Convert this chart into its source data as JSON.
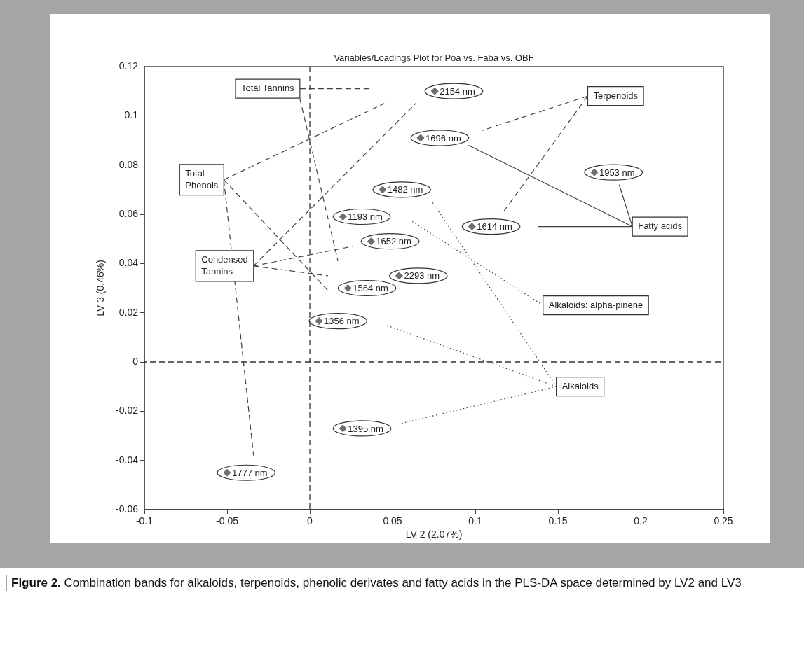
{
  "chart_data": {
    "type": "scatter",
    "title": "Variables/Loadings Plot for Poa vs. Faba vs. OBF",
    "xlabel": "LV 2 (2.07%)",
    "ylabel": "LV 3 (0.46%)",
    "xlim": [
      -0.1,
      0.25
    ],
    "ylim": [
      -0.06,
      0.12
    ],
    "xticks": [
      -0.1,
      -0.05,
      0,
      0.05,
      0.1,
      0.15,
      0.2,
      0.25
    ],
    "yticks": [
      -0.06,
      -0.04,
      -0.02,
      0,
      0.02,
      0.04,
      0.06,
      0.08,
      0.1,
      0.12
    ],
    "grid": false,
    "legend": false,
    "marker": "diamond",
    "series": [
      {
        "name": "2154 nm",
        "color": "#6e6e6e",
        "x": [
          0.0755
        ],
        "values": [
          0.11
        ]
      },
      {
        "name": "1696 nm",
        "color": "#6e6e6e",
        "x": [
          0.067
        ],
        "values": [
          0.091
        ]
      },
      {
        "name": "1482 nm",
        "color": "#6e6e6e",
        "x": [
          0.044
        ],
        "values": [
          0.07
        ]
      },
      {
        "name": "1193 nm",
        "color": "#6e6e6e",
        "x": [
          0.02
        ],
        "values": [
          0.059
        ]
      },
      {
        "name": "1614 nm",
        "color": "#6e6e6e",
        "x": [
          0.098
        ],
        "values": [
          0.055
        ]
      },
      {
        "name": "1652 nm",
        "color": "#6e6e6e",
        "x": [
          0.037
        ],
        "values": [
          0.049
        ]
      },
      {
        "name": "2293 nm",
        "color": "#6e6e6e",
        "x": [
          0.054
        ],
        "values": [
          0.035
        ]
      },
      {
        "name": "1564 nm",
        "color": "#6e6e6e",
        "x": [
          0.023
        ],
        "values": [
          0.03
        ]
      },
      {
        "name": "1953 nm",
        "color": "#6e6e6e",
        "x": [
          0.172
        ],
        "values": [
          0.077
        ]
      },
      {
        "name": "1356 nm",
        "color": "#6e6e6e",
        "x": [
          0.0055
        ],
        "values": [
          0.0166
        ]
      },
      {
        "name": "1395 nm",
        "color": "#6e6e6e",
        "x": [
          0.02
        ],
        "values": [
          -0.027
        ]
      },
      {
        "name": "1777 nm",
        "color": "#6e6e6e",
        "x": [
          -0.05
        ],
        "values": [
          -0.045
        ]
      },
      {
        "type": "line",
        "name": "Total Tannins",
        "color": "#404040",
        "marker": "none",
        "line_style": "dashed",
        "x": [
          -0.006,
          0.036,
          null,
          -0.006,
          0.017
        ],
        "values": [
          0.111,
          0.111,
          null,
          0.107,
          0.041
        ]
      },
      {
        "type": "line",
        "name": "Total\nPhenols",
        "color": "#404040",
        "marker": "none",
        "line_style": "dashed",
        "x": [
          -0.052,
          0.045,
          null,
          -0.052,
          0.011,
          null,
          -0.052,
          -0.034
        ],
        "values": [
          0.074,
          0.105,
          null,
          0.074,
          0.029,
          null,
          0.074,
          -0.038
        ]
      },
      {
        "type": "line",
        "name": "Condensed\nTannins",
        "color": "#404040",
        "marker": "none",
        "line_style": "dashed",
        "x": [
          -0.034,
          0.064,
          null,
          -0.034,
          0.026,
          null,
          -0.034,
          0.011
        ],
        "values": [
          0.039,
          0.105,
          null,
          0.039,
          0.047,
          null,
          0.039,
          0.035
        ]
      },
      {
        "type": "line",
        "name": "Terpenoids",
        "color": "#404040",
        "marker": "none",
        "line_style": "dashed",
        "x": [
          0.168,
          0.104,
          null,
          0.168,
          0.117
        ],
        "values": [
          0.108,
          0.094,
          null,
          0.108,
          0.061
        ]
      },
      {
        "type": "line",
        "name": "Fatty acids",
        "color": "#404040",
        "marker": "none",
        "line_style": "solid",
        "x": [
          0.195,
          0.096,
          null,
          0.195,
          0.138,
          null,
          0.195,
          0.187
        ],
        "values": [
          0.055,
          0.088,
          null,
          0.055,
          0.055,
          null,
          0.055,
          0.072
        ]
      },
      {
        "type": "line",
        "name": "Alkaloids: alpha-pinene",
        "color": "#404040",
        "marker": "none",
        "line_style": "dotted",
        "x": [
          0.141,
          0.062
        ],
        "values": [
          0.023,
          0.057
        ]
      },
      {
        "type": "line",
        "name": "Alkaloids",
        "color": "#404040",
        "marker": "none",
        "line_style": "dotted",
        "x": [
          0.149,
          0.074,
          null,
          0.149,
          0.046,
          null,
          0.149,
          0.055
        ],
        "values": [
          -0.01,
          0.065,
          null,
          -0.01,
          0.015,
          null,
          -0.01,
          -0.025
        ]
      }
    ],
    "ref_lines": [
      {
        "axis": "x",
        "value": 0,
        "line_style": "dashed"
      },
      {
        "axis": "y",
        "value": 0,
        "line_style": "dashed"
      }
    ],
    "annotations": [
      "Figure 2. Combination bands for alkaloids, terpenoids, phenolic derivates and fatty acids in the PLS-DA space determined by LV2 and LV3"
    ]
  }
}
